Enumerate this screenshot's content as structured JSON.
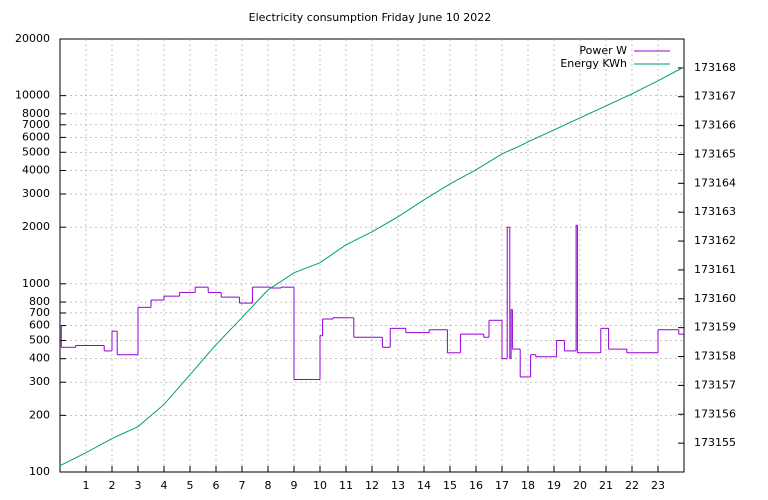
{
  "chart_data": {
    "type": "line",
    "title": "Electricity consumption Friday June 10 2022",
    "xlim": [
      0,
      24
    ],
    "xticks": [
      1,
      2,
      3,
      4,
      5,
      6,
      7,
      8,
      9,
      10,
      11,
      12,
      13,
      14,
      15,
      16,
      17,
      18,
      19,
      20,
      21,
      22,
      23
    ],
    "ylim": [
      100,
      20000
    ],
    "yticks": [
      100,
      200,
      300,
      400,
      500,
      600,
      700,
      800,
      1000,
      2000,
      3000,
      4000,
      5000,
      6000,
      7000,
      8000,
      10000,
      20000
    ],
    "y_log": true,
    "y2lim": [
      173154,
      173169
    ],
    "y2ticks": [
      173155,
      173156,
      173157,
      173158,
      173159,
      173160,
      173161,
      173162,
      173163,
      173164,
      173165,
      173166,
      173167,
      173168
    ],
    "grid": true,
    "legend": "top-right",
    "series": [
      {
        "name": "Power W",
        "color": "#9400d3",
        "step": true,
        "x": [
          0,
          0.05,
          0.6,
          1.7,
          2.0,
          2.2,
          3.0,
          3.5,
          4.0,
          4.6,
          5.2,
          5.7,
          6.2,
          6.9,
          7.4,
          8.1,
          8.5,
          9.0,
          10.0,
          10.1,
          10.5,
          11.3,
          12.4,
          12.7,
          13.3,
          14.2,
          14.9,
          15.4,
          16.3,
          16.5,
          17.0,
          17.2,
          17.3,
          17.35,
          17.4,
          17.7,
          18.1,
          18.3,
          19.1,
          19.4,
          19.85,
          19.9,
          20.8,
          21.1,
          21.8,
          23.0,
          23.8
        ],
        "values": [
          600,
          460,
          470,
          440,
          560,
          420,
          750,
          820,
          860,
          900,
          960,
          900,
          850,
          790,
          960,
          950,
          960,
          310,
          530,
          650,
          660,
          520,
          460,
          580,
          550,
          570,
          430,
          540,
          520,
          640,
          400,
          2000,
          400,
          730,
          450,
          320,
          420,
          410,
          500,
          440,
          2050,
          430,
          580,
          450,
          430,
          570,
          540
        ]
      },
      {
        "name": "Energy KWh",
        "color": "#009e73",
        "axis": "y2",
        "x": [
          0,
          1,
          2,
          3,
          4,
          5,
          6,
          7,
          8,
          9,
          10,
          11,
          12,
          13,
          14,
          15,
          16,
          17,
          17.7,
          18,
          19,
          20,
          21,
          22,
          23,
          24
        ],
        "values": [
          173154.22,
          173154.67,
          173155.16,
          173155.57,
          173156.34,
          173157.37,
          173158.41,
          173159.35,
          173160.31,
          173160.9,
          173161.25,
          173161.87,
          173162.32,
          173162.84,
          173163.43,
          173163.98,
          173164.47,
          173165.02,
          173165.3,
          173165.44,
          173165.85,
          173166.27,
          173166.68,
          173167.1,
          173167.55,
          173168.03
        ]
      }
    ]
  }
}
